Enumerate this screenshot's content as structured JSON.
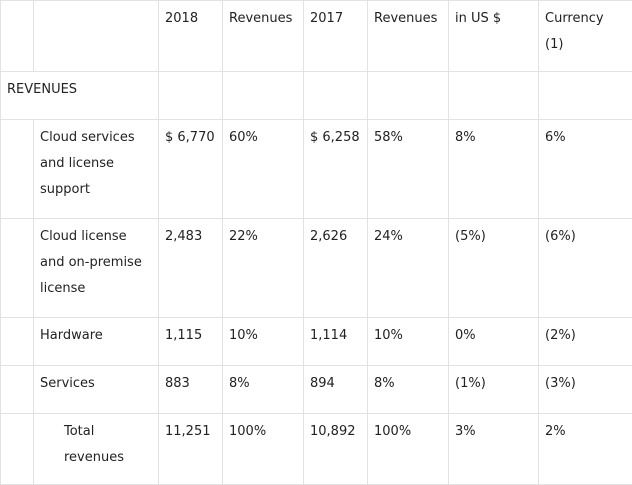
{
  "table": {
    "headers": [
      "",
      "",
      "2018",
      "Revenues",
      "2017",
      "Revenues",
      "in US $",
      "Currency (1)"
    ],
    "section_label": "REVENUES",
    "rows": [
      {
        "label": "Cloud services and license support",
        "v2018": "$ 6,770",
        "p2018": "60%",
        "v2017": "$ 6,258",
        "p2017": "58%",
        "usd": "8%",
        "cc": "6%"
      },
      {
        "label": "Cloud license and on-premise license",
        "v2018": "2,483",
        "p2018": "22%",
        "v2017": "2,626",
        "p2017": "24%",
        "usd": "(5%)",
        "cc": "(6%)"
      },
      {
        "label": "Hardware",
        "v2018": "1,115",
        "p2018": "10%",
        "v2017": "1,114",
        "p2017": "10%",
        "usd": "0%",
        "cc": "(2%)"
      },
      {
        "label": "Services",
        "v2018": "883",
        "p2018": "8%",
        "v2017": "894",
        "p2017": "8%",
        "usd": "(1%)",
        "cc": "(3%)"
      },
      {
        "label": "Total revenues",
        "v2018": "11,251",
        "p2018": "100%",
        "v2017": "10,892",
        "p2017": "100%",
        "usd": "3%",
        "cc": "2%"
      }
    ]
  }
}
